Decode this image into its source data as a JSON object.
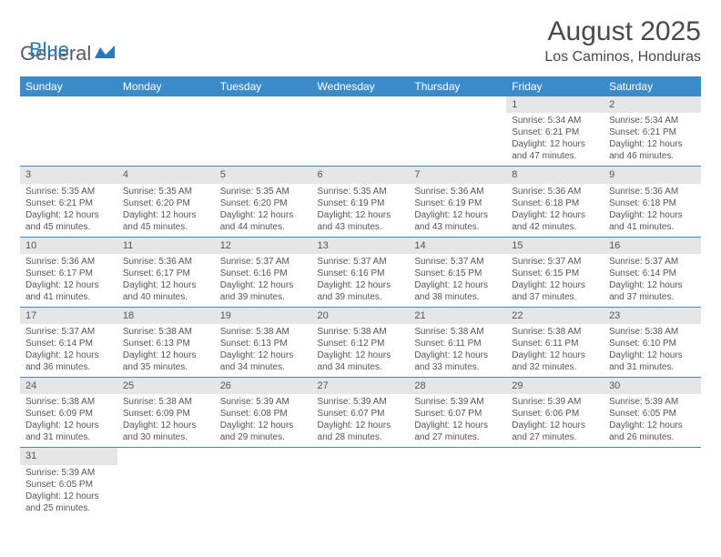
{
  "logo": {
    "text1": "General",
    "text2": "Blue"
  },
  "title": "August 2025",
  "location": "Los Caminos, Honduras",
  "colors": {
    "header_bg": "#3b8bc9",
    "header_text": "#ffffff",
    "daynum_bg": "#e6e6e6",
    "text": "#555555",
    "border": "#3b8bc9"
  },
  "day_headers": [
    "Sunday",
    "Monday",
    "Tuesday",
    "Wednesday",
    "Thursday",
    "Friday",
    "Saturday"
  ],
  "weeks": [
    [
      null,
      null,
      null,
      null,
      null,
      {
        "n": "1",
        "sr": "Sunrise: 5:34 AM",
        "ss": "Sunset: 6:21 PM",
        "dl": "Daylight: 12 hours and 47 minutes."
      },
      {
        "n": "2",
        "sr": "Sunrise: 5:34 AM",
        "ss": "Sunset: 6:21 PM",
        "dl": "Daylight: 12 hours and 46 minutes."
      }
    ],
    [
      {
        "n": "3",
        "sr": "Sunrise: 5:35 AM",
        "ss": "Sunset: 6:21 PM",
        "dl": "Daylight: 12 hours and 45 minutes."
      },
      {
        "n": "4",
        "sr": "Sunrise: 5:35 AM",
        "ss": "Sunset: 6:20 PM",
        "dl": "Daylight: 12 hours and 45 minutes."
      },
      {
        "n": "5",
        "sr": "Sunrise: 5:35 AM",
        "ss": "Sunset: 6:20 PM",
        "dl": "Daylight: 12 hours and 44 minutes."
      },
      {
        "n": "6",
        "sr": "Sunrise: 5:35 AM",
        "ss": "Sunset: 6:19 PM",
        "dl": "Daylight: 12 hours and 43 minutes."
      },
      {
        "n": "7",
        "sr": "Sunrise: 5:36 AM",
        "ss": "Sunset: 6:19 PM",
        "dl": "Daylight: 12 hours and 43 minutes."
      },
      {
        "n": "8",
        "sr": "Sunrise: 5:36 AM",
        "ss": "Sunset: 6:18 PM",
        "dl": "Daylight: 12 hours and 42 minutes."
      },
      {
        "n": "9",
        "sr": "Sunrise: 5:36 AM",
        "ss": "Sunset: 6:18 PM",
        "dl": "Daylight: 12 hours and 41 minutes."
      }
    ],
    [
      {
        "n": "10",
        "sr": "Sunrise: 5:36 AM",
        "ss": "Sunset: 6:17 PM",
        "dl": "Daylight: 12 hours and 41 minutes."
      },
      {
        "n": "11",
        "sr": "Sunrise: 5:36 AM",
        "ss": "Sunset: 6:17 PM",
        "dl": "Daylight: 12 hours and 40 minutes."
      },
      {
        "n": "12",
        "sr": "Sunrise: 5:37 AM",
        "ss": "Sunset: 6:16 PM",
        "dl": "Daylight: 12 hours and 39 minutes."
      },
      {
        "n": "13",
        "sr": "Sunrise: 5:37 AM",
        "ss": "Sunset: 6:16 PM",
        "dl": "Daylight: 12 hours and 39 minutes."
      },
      {
        "n": "14",
        "sr": "Sunrise: 5:37 AM",
        "ss": "Sunset: 6:15 PM",
        "dl": "Daylight: 12 hours and 38 minutes."
      },
      {
        "n": "15",
        "sr": "Sunrise: 5:37 AM",
        "ss": "Sunset: 6:15 PM",
        "dl": "Daylight: 12 hours and 37 minutes."
      },
      {
        "n": "16",
        "sr": "Sunrise: 5:37 AM",
        "ss": "Sunset: 6:14 PM",
        "dl": "Daylight: 12 hours and 37 minutes."
      }
    ],
    [
      {
        "n": "17",
        "sr": "Sunrise: 5:37 AM",
        "ss": "Sunset: 6:14 PM",
        "dl": "Daylight: 12 hours and 36 minutes."
      },
      {
        "n": "18",
        "sr": "Sunrise: 5:38 AM",
        "ss": "Sunset: 6:13 PM",
        "dl": "Daylight: 12 hours and 35 minutes."
      },
      {
        "n": "19",
        "sr": "Sunrise: 5:38 AM",
        "ss": "Sunset: 6:13 PM",
        "dl": "Daylight: 12 hours and 34 minutes."
      },
      {
        "n": "20",
        "sr": "Sunrise: 5:38 AM",
        "ss": "Sunset: 6:12 PM",
        "dl": "Daylight: 12 hours and 34 minutes."
      },
      {
        "n": "21",
        "sr": "Sunrise: 5:38 AM",
        "ss": "Sunset: 6:11 PM",
        "dl": "Daylight: 12 hours and 33 minutes."
      },
      {
        "n": "22",
        "sr": "Sunrise: 5:38 AM",
        "ss": "Sunset: 6:11 PM",
        "dl": "Daylight: 12 hours and 32 minutes."
      },
      {
        "n": "23",
        "sr": "Sunrise: 5:38 AM",
        "ss": "Sunset: 6:10 PM",
        "dl": "Daylight: 12 hours and 31 minutes."
      }
    ],
    [
      {
        "n": "24",
        "sr": "Sunrise: 5:38 AM",
        "ss": "Sunset: 6:09 PM",
        "dl": "Daylight: 12 hours and 31 minutes."
      },
      {
        "n": "25",
        "sr": "Sunrise: 5:38 AM",
        "ss": "Sunset: 6:09 PM",
        "dl": "Daylight: 12 hours and 30 minutes."
      },
      {
        "n": "26",
        "sr": "Sunrise: 5:39 AM",
        "ss": "Sunset: 6:08 PM",
        "dl": "Daylight: 12 hours and 29 minutes."
      },
      {
        "n": "27",
        "sr": "Sunrise: 5:39 AM",
        "ss": "Sunset: 6:07 PM",
        "dl": "Daylight: 12 hours and 28 minutes."
      },
      {
        "n": "28",
        "sr": "Sunrise: 5:39 AM",
        "ss": "Sunset: 6:07 PM",
        "dl": "Daylight: 12 hours and 27 minutes."
      },
      {
        "n": "29",
        "sr": "Sunrise: 5:39 AM",
        "ss": "Sunset: 6:06 PM",
        "dl": "Daylight: 12 hours and 27 minutes."
      },
      {
        "n": "30",
        "sr": "Sunrise: 5:39 AM",
        "ss": "Sunset: 6:05 PM",
        "dl": "Daylight: 12 hours and 26 minutes."
      }
    ],
    [
      {
        "n": "31",
        "sr": "Sunrise: 5:39 AM",
        "ss": "Sunset: 6:05 PM",
        "dl": "Daylight: 12 hours and 25 minutes."
      },
      null,
      null,
      null,
      null,
      null,
      null
    ]
  ]
}
